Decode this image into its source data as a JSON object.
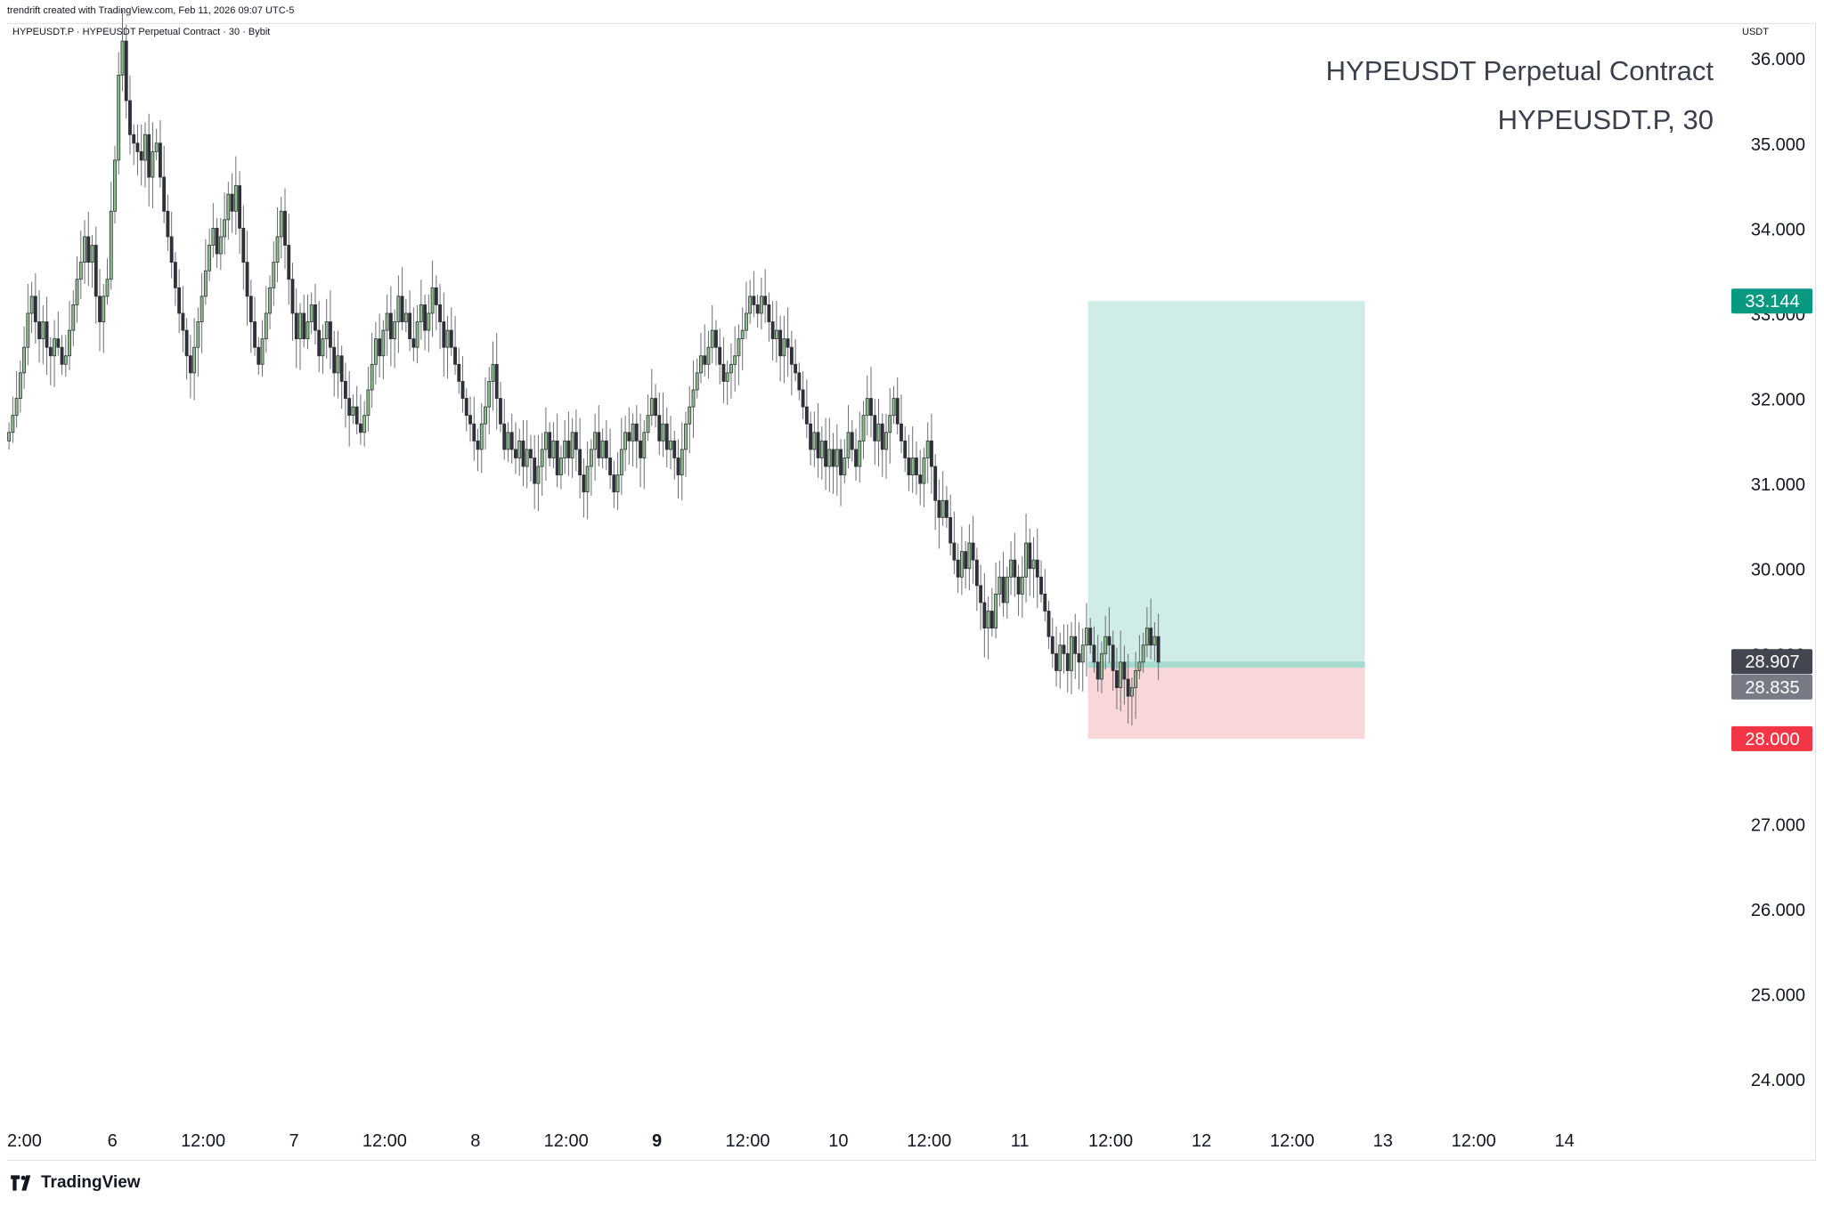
{
  "credit": "trendrift created with TradingView.com, Feb 11, 2026 09:07 UTC-5",
  "legend": "HYPEUSDT.P · HYPEUSDT Perpetual Contract · 30 · Bybit",
  "watermark": {
    "title": "HYPEUSDT Perpetual Contract",
    "subtitle": "HYPEUSDT.P, 30"
  },
  "price_unit": "USDT",
  "brand": "TradingView",
  "colors": {
    "up": "#8fbf8c",
    "down": "#2f3138",
    "wick": "#6b6f78",
    "target_zone": "#d0ece6",
    "stop_zone": "#f9d6d8",
    "target_label": "#089981",
    "stop_label": "#f23645",
    "current_label": "#434651",
    "entry_label": "#787b86"
  },
  "chart_data": {
    "type": "candlestick",
    "y_axis": {
      "ylim": [
        23.5,
        36.4
      ],
      "ticks": [
        "24.000",
        "25.000",
        "26.000",
        "27.000",
        "28.000",
        "29.000",
        "30.000",
        "31.000",
        "32.000",
        "33.000",
        "34.000",
        "35.000",
        "36.000"
      ]
    },
    "x_axis": {
      "labels": [
        "2:00",
        "6",
        "12:00",
        "7",
        "12:00",
        "8",
        "12:00",
        "9",
        "12:00",
        "10",
        "12:00",
        "11",
        "12:00",
        "12",
        "12:00",
        "13",
        "12:00",
        "14"
      ],
      "label_times": [
        -0.5,
        0,
        0.5,
        1,
        1.5,
        2,
        2.5,
        3,
        3.5,
        4,
        4.5,
        5,
        5.5,
        6,
        6.5,
        7,
        7.5,
        8
      ],
      "bold": "9",
      "xlim": [
        -0.58,
        8.9
      ]
    },
    "candle_period_days": 0.02083,
    "series_start_time": -0.58,
    "closes": [
      31.6,
      31.8,
      32.0,
      32.3,
      32.6,
      33.0,
      33.2,
      32.9,
      32.7,
      32.9,
      32.6,
      32.5,
      32.7,
      32.6,
      32.4,
      32.5,
      32.8,
      33.1,
      33.4,
      33.6,
      33.9,
      33.6,
      33.8,
      33.2,
      32.9,
      33.2,
      33.4,
      34.2,
      34.8,
      35.8,
      36.2,
      35.5,
      35.1,
      35.0,
      34.9,
      34.8,
      35.1,
      34.6,
      34.9,
      35.0,
      34.6,
      34.2,
      33.9,
      33.6,
      33.3,
      33.0,
      32.8,
      32.5,
      32.3,
      32.6,
      32.9,
      33.2,
      33.5,
      33.8,
      34.0,
      33.7,
      33.9,
      34.1,
      34.4,
      34.2,
      34.5,
      34.0,
      33.6,
      33.2,
      32.9,
      32.6,
      32.4,
      32.7,
      33.0,
      33.3,
      33.6,
      33.9,
      34.2,
      33.8,
      33.4,
      33.0,
      32.7,
      33.0,
      32.7,
      32.9,
      33.1,
      32.8,
      32.5,
      32.7,
      32.9,
      32.6,
      32.3,
      32.5,
      32.2,
      32.0,
      31.8,
      31.9,
      31.7,
      31.6,
      31.8,
      32.1,
      32.4,
      32.7,
      32.5,
      32.8,
      33.0,
      32.7,
      32.9,
      33.2,
      32.9,
      33.0,
      32.7,
      32.6,
      32.9,
      33.1,
      32.8,
      33.0,
      33.3,
      33.1,
      32.9,
      32.6,
      32.8,
      32.6,
      32.4,
      32.2,
      32.0,
      31.8,
      31.7,
      31.5,
      31.4,
      31.7,
      31.9,
      32.2,
      32.4,
      32.0,
      31.7,
      31.4,
      31.6,
      31.4,
      31.3,
      31.5,
      31.2,
      31.4,
      31.3,
      31.0,
      31.2,
      31.4,
      31.6,
      31.3,
      31.5,
      31.1,
      31.3,
      31.5,
      31.3,
      31.6,
      31.4,
      31.1,
      30.9,
      31.2,
      31.4,
      31.6,
      31.3,
      31.5,
      31.3,
      31.1,
      30.9,
      31.1,
      31.4,
      31.6,
      31.5,
      31.7,
      31.5,
      31.3,
      31.6,
      31.8,
      32.0,
      31.8,
      31.5,
      31.7,
      31.4,
      31.5,
      31.3,
      31.1,
      31.4,
      31.7,
      31.9,
      32.1,
      32.3,
      32.5,
      32.4,
      32.6,
      32.8,
      32.6,
      32.4,
      32.2,
      32.3,
      32.4,
      32.5,
      32.7,
      32.8,
      33.0,
      33.2,
      33.1,
      33.0,
      33.2,
      33.1,
      32.9,
      32.7,
      32.8,
      32.5,
      32.7,
      32.6,
      32.4,
      32.3,
      32.1,
      31.9,
      31.7,
      31.4,
      31.6,
      31.3,
      31.5,
      31.2,
      31.4,
      31.2,
      31.4,
      31.1,
      31.3,
      31.6,
      31.4,
      31.2,
      31.5,
      31.8,
      32.0,
      31.8,
      31.5,
      31.7,
      31.4,
      31.6,
      31.8,
      32.0,
      31.7,
      31.5,
      31.3,
      31.1,
      31.3,
      31.1,
      31.0,
      31.3,
      31.5,
      31.2,
      30.8,
      30.6,
      30.8,
      30.6,
      30.3,
      30.1,
      29.9,
      30.2,
      30.0,
      30.3,
      30.1,
      29.8,
      29.6,
      29.3,
      29.5,
      29.3,
      29.7,
      29.9,
      29.6,
      29.9,
      30.1,
      29.9,
      29.7,
      29.9,
      30.3,
      30.0,
      30.1,
      29.9,
      29.7,
      29.5,
      29.2,
      29.0,
      28.8,
      29.1,
      29.0,
      28.8,
      29.2,
      29.0,
      28.9,
      29.1,
      29.3,
      29.1,
      28.9,
      28.7,
      29.0,
      29.2,
      29.1,
      28.8,
      28.6,
      28.9,
      28.7,
      28.5,
      28.6,
      28.8,
      28.9,
      29.1,
      29.3,
      29.1,
      29.2,
      28.9
    ]
  },
  "position": {
    "target_label": "33.144",
    "current_label": "28.907",
    "entry_label": "28.835",
    "stop_label": "28.000",
    "target": 33.144,
    "entry": 28.835,
    "current": 28.907,
    "stop": 28.0,
    "start_time": 5.375,
    "end_time": 6.9
  }
}
